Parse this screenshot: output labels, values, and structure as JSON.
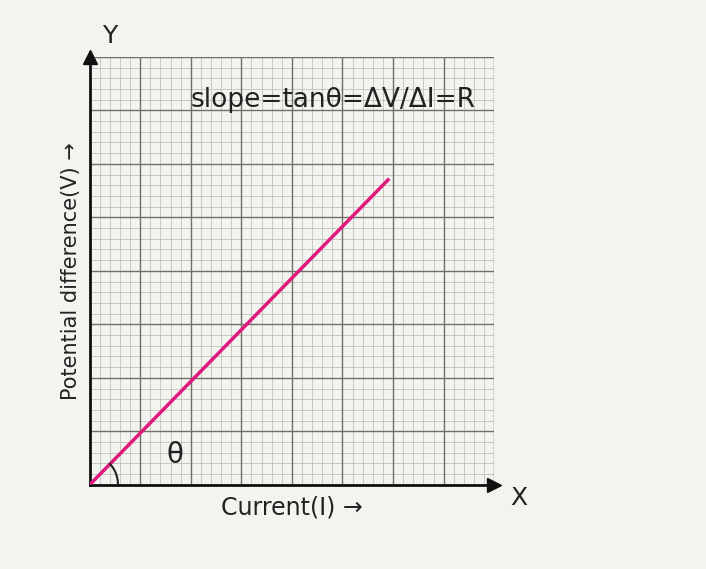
{
  "chart_data": {
    "type": "line",
    "annotation": "slope=tanθ=ΔV/ΔI=R",
    "angle_label": "θ",
    "x_label": "Current(I) →",
    "y_label": "Potential difference(V) →",
    "axis_names": {
      "x": "X",
      "y": "Y"
    },
    "x": [
      0,
      5.9
    ],
    "values": [
      0,
      5.7
    ],
    "color": "#e0197d",
    "xlim": [
      0,
      8
    ],
    "ylim": [
      0,
      8
    ],
    "xticks": [
      0,
      1,
      2,
      3,
      4,
      5,
      6,
      7,
      8
    ],
    "yticks": [
      0,
      1,
      2,
      3,
      4,
      5,
      6,
      7,
      8
    ],
    "grid": true,
    "tick_labels": false
  }
}
